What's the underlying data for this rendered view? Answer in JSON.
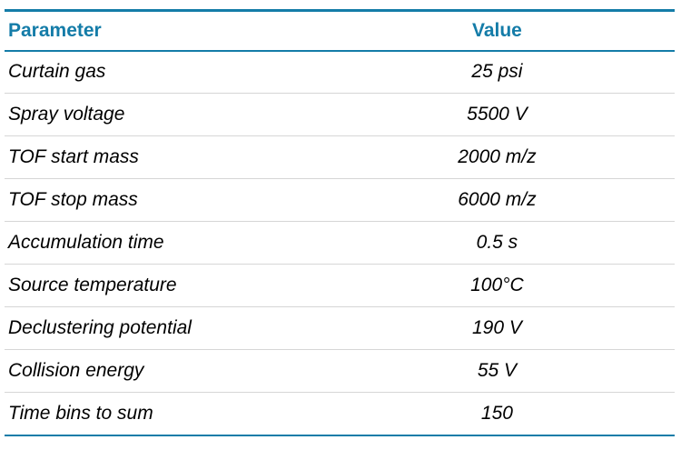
{
  "colors": {
    "accent": "#147ca8",
    "separator": "#d6d6d6",
    "body_text": "#000000",
    "background": "#ffffff"
  },
  "table": {
    "columns": {
      "parameter_header": "Parameter",
      "value_header": "Value"
    },
    "rows": [
      {
        "parameter": "Curtain gas",
        "value": "25 psi"
      },
      {
        "parameter": "Spray voltage",
        "value": "5500 V"
      },
      {
        "parameter": "TOF start mass",
        "value": "2000 m/z"
      },
      {
        "parameter": "TOF stop mass",
        "value": "6000 m/z"
      },
      {
        "parameter": "Accumulation time",
        "value": "0.5 s"
      },
      {
        "parameter": "Source temperature",
        "value": "100°C"
      },
      {
        "parameter": "Declustering potential",
        "value": "190 V"
      },
      {
        "parameter": "Collision energy",
        "value": "55 V"
      },
      {
        "parameter": "Time bins to sum",
        "value": "150"
      }
    ]
  }
}
